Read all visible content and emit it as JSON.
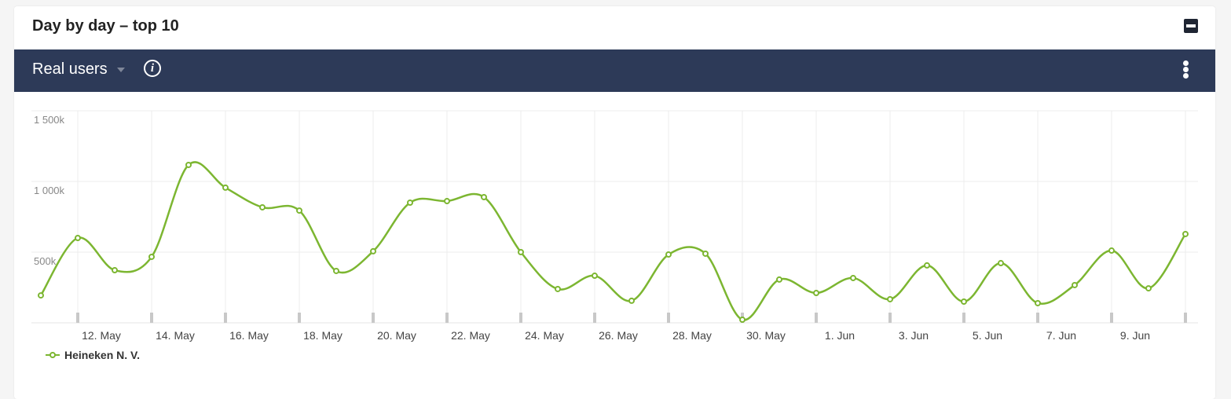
{
  "panel": {
    "title": "Day by day – top 10"
  },
  "toolbar": {
    "metric_label": "Real users"
  },
  "colors": {
    "series": "#7cb631",
    "header_bar": "#2d3a58"
  },
  "chart_data": {
    "type": "line",
    "title": "",
    "xlabel": "",
    "ylabel": "",
    "ylim": [
      0,
      1500000
    ],
    "y_ticks": [
      {
        "value": 500000,
        "label": "500k"
      },
      {
        "value": 1000000,
        "label": "1 000k"
      },
      {
        "value": 1500000,
        "label": "1 500k"
      }
    ],
    "x_tick_labels": [
      "12. May",
      "14. May",
      "16. May",
      "18. May",
      "20. May",
      "22. May",
      "24. May",
      "26. May",
      "28. May",
      "30. May",
      "1. Jun",
      "3. Jun",
      "5. Jun",
      "7. Jun",
      "9. Jun"
    ],
    "x": [
      "11 May",
      "12 May",
      "13 May",
      "14 May",
      "15 May",
      "16 May",
      "17 May",
      "18 May",
      "19 May",
      "20 May",
      "21 May",
      "22 May",
      "23 May",
      "24 May",
      "25 May",
      "26 May",
      "27 May",
      "28 May",
      "29 May",
      "30 May",
      "31 May",
      "1 Jun",
      "2 Jun",
      "3 Jun",
      "4 Jun",
      "5 Jun",
      "6 Jun",
      "7 Jun",
      "8 Jun",
      "9 Jun",
      "10 Jun",
      "11 Jun"
    ],
    "grid": true,
    "legend": "bottom-left",
    "series": [
      {
        "name": "Heineken N. V.",
        "values": [
          194000,
          600000,
          372000,
          467000,
          1117000,
          956000,
          817000,
          794000,
          367000,
          506000,
          850000,
          861000,
          889000,
          500000,
          239000,
          333000,
          156000,
          483000,
          489000,
          22000,
          306000,
          211000,
          317000,
          167000,
          406000,
          150000,
          422000,
          139000,
          267000,
          511000,
          244000,
          628000
        ]
      }
    ]
  }
}
